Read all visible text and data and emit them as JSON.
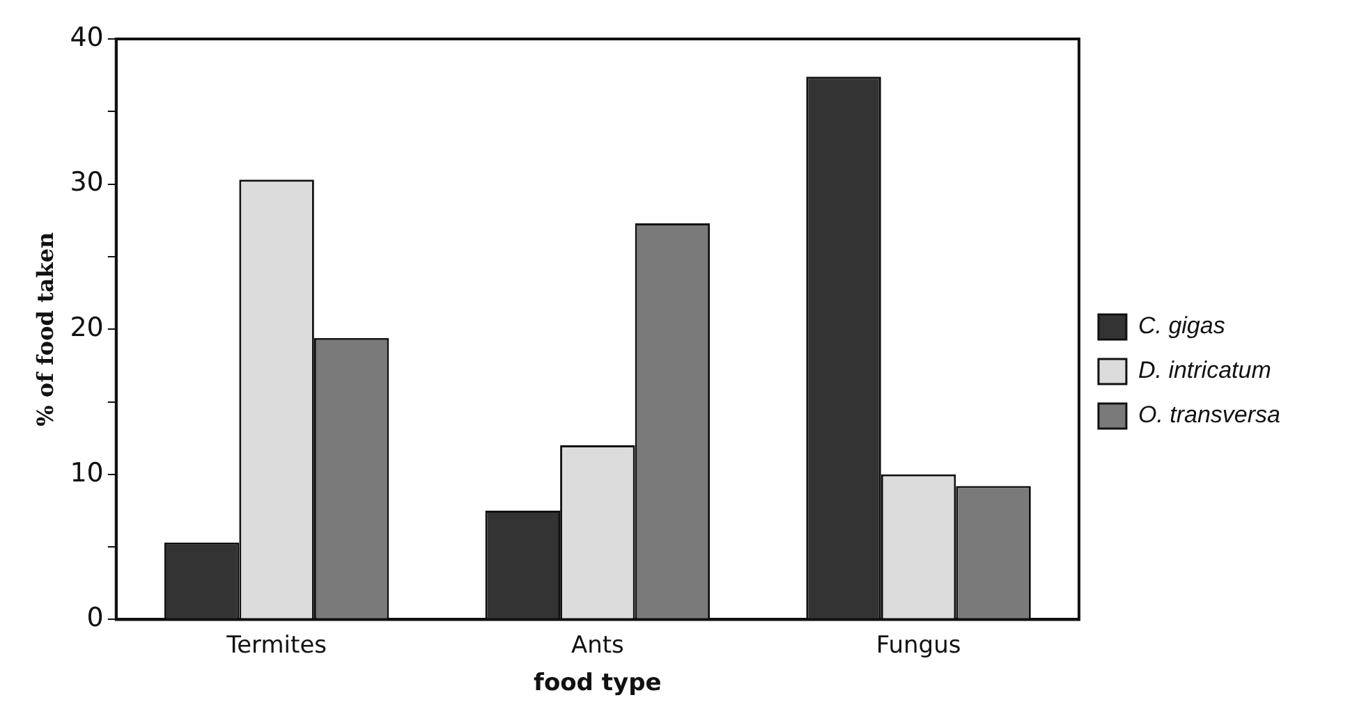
{
  "chart_data": {
    "type": "bar",
    "xlabel": "food type",
    "ylabel": "% of food taken",
    "categories": [
      "Termites",
      "Ants",
      "Fungus"
    ],
    "series": [
      {
        "name": "C. gigas",
        "color": "#333333",
        "values": [
          5.3,
          7.5,
          37.4
        ]
      },
      {
        "name": "D. intricatum",
        "color": "#dcdcdc",
        "values": [
          30.3,
          12.0,
          10.0
        ]
      },
      {
        "name": "O. transversa",
        "color": "#7a7a7a",
        "values": [
          19.4,
          27.3,
          9.2
        ]
      }
    ],
    "ylim": [
      0,
      40
    ],
    "yticks": [
      0,
      {
        "value": 5,
        "label": null
      },
      10,
      {
        "value": 15,
        "label": null
      },
      20,
      {
        "value": 25,
        "label": null
      },
      30,
      {
        "value": 35,
        "label": null
      },
      40
    ],
    "grid": false,
    "legend": "right"
  }
}
